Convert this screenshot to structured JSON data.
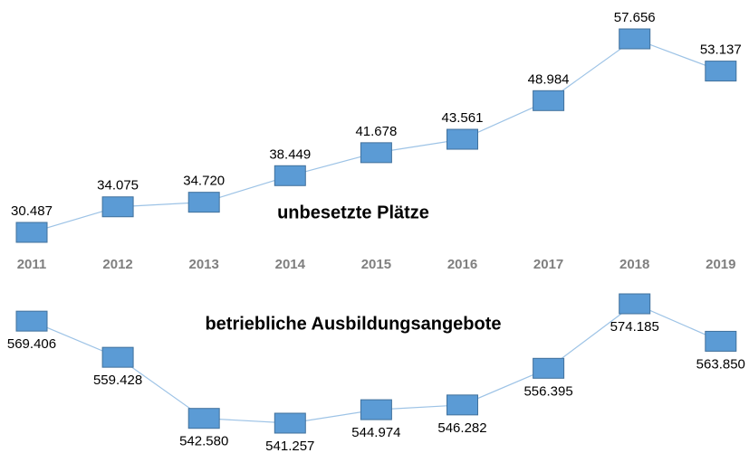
{
  "chart_data": [
    {
      "type": "line",
      "title": "unbesetzte Plätze",
      "categories": [
        "2011",
        "2012",
        "2013",
        "2014",
        "2015",
        "2016",
        "2017",
        "2018",
        "2019"
      ],
      "series": [
        {
          "color": "#5b9bd5",
          "values": [
            30487,
            34075,
            34720,
            38449,
            41678,
            43561,
            48984,
            57656,
            53137
          ],
          "value_labels": [
            "30.487",
            "34.075",
            "34.720",
            "38.449",
            "41.678",
            "43.561",
            "48.984",
            "57.656",
            "53.137"
          ]
        }
      ]
    },
    {
      "type": "line",
      "title": "betriebliche Ausbildungsangebote",
      "series": [
        {
          "color": "#5b9bd5",
          "values": [
            569406,
            559428,
            542580,
            541257,
            544974,
            546282,
            556395,
            574185,
            563850
          ],
          "value_labels": [
            "569.406",
            "559.428",
            "542.580",
            "541.257",
            "544.974",
            "546.282",
            "556.395",
            "574.185",
            "563.850"
          ]
        }
      ]
    }
  ]
}
